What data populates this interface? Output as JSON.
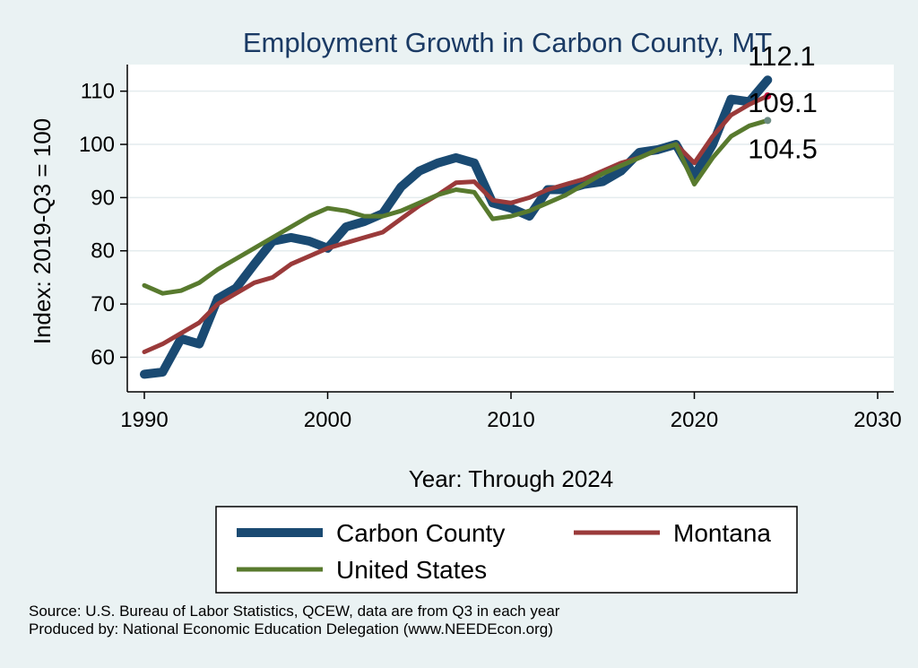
{
  "chart_data": {
    "type": "line",
    "title": "Employment Growth in Carbon County, MT",
    "xlabel": "Year: Through 2024",
    "ylabel": "Index: 2019-Q3 = 100",
    "xlim": [
      1990,
      2030
    ],
    "ylim": [
      53.5,
      115
    ],
    "xticks": [
      "1990",
      "2000",
      "2010",
      "2020",
      "2030"
    ],
    "yticks": [
      "60",
      "70",
      "80",
      "90",
      "100",
      "110"
    ],
    "grid": true,
    "legend_position": "bottom",
    "x": [
      1990,
      1991,
      1992,
      1993,
      1994,
      1995,
      1996,
      1997,
      1998,
      1999,
      2000,
      2001,
      2002,
      2003,
      2004,
      2005,
      2006,
      2007,
      2008,
      2009,
      2010,
      2011,
      2012,
      2013,
      2014,
      2015,
      2016,
      2017,
      2018,
      2019,
      2020,
      2021,
      2022,
      2023,
      2024
    ],
    "series": [
      {
        "name": "Carbon  County",
        "color": "#1a4a72",
        "end_label": "112.1",
        "values": [
          56.8,
          57.2,
          63.5,
          62.5,
          71.0,
          73.0,
          77.5,
          81.8,
          82.5,
          81.8,
          80.5,
          84.5,
          85.5,
          87.0,
          92.0,
          95.0,
          96.5,
          97.5,
          96.5,
          89.0,
          88.0,
          86.5,
          91.5,
          91.5,
          92.5,
          93.0,
          95.0,
          98.5,
          99.0,
          100.0,
          94.0,
          100.0,
          108.5,
          108.0,
          112.1
        ]
      },
      {
        "name": "Montana",
        "color": "#9a3a3a",
        "end_label": "109.1",
        "values": [
          61.0,
          62.5,
          64.5,
          66.5,
          70.0,
          72.0,
          74.0,
          75.0,
          77.5,
          79.0,
          80.5,
          81.5,
          82.5,
          83.5,
          86.0,
          88.5,
          90.5,
          92.8,
          93.0,
          89.5,
          89.0,
          90.0,
          91.5,
          92.5,
          93.5,
          95.0,
          96.5,
          97.5,
          99.0,
          100.0,
          96.5,
          101.5,
          105.5,
          107.5,
          109.1
        ]
      },
      {
        "name": "United States",
        "color": "#587a2e",
        "end_label": "104.5",
        "values": [
          73.5,
          72.0,
          72.5,
          74.0,
          76.5,
          78.5,
          80.5,
          82.5,
          84.5,
          86.5,
          88.0,
          87.5,
          86.5,
          86.5,
          87.5,
          89.0,
          90.5,
          91.5,
          91.0,
          86.0,
          86.5,
          87.5,
          89.0,
          90.5,
          92.5,
          94.5,
          96.0,
          97.5,
          99.0,
          100.0,
          92.5,
          97.5,
          101.5,
          103.5,
          104.5
        ]
      }
    ]
  },
  "footer": {
    "source": "Source: U.S. Bureau of Labor Statistics, QCEW, data are from Q3 in each year",
    "produced_by": "Produced by: National Economic Education Delegation (www.NEEDEcon.org)"
  }
}
